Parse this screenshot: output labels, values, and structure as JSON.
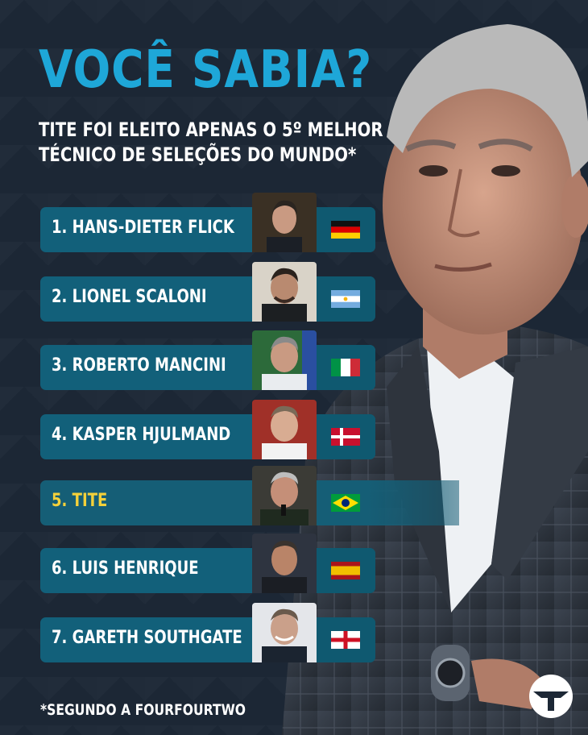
{
  "headline": "VOCÊ SABIA?",
  "subtitle_line1": "TITE FOI ELEITO APENAS O 5º MELHOR",
  "subtitle_line2": "TÉCNICO DE SELEÇÕES DO MUNDO*",
  "ranking": [
    {
      "label": "1. HANS-DIETER FLICK",
      "flag": "germany-flag-icon"
    },
    {
      "label": "2. LIONEL SCALONI",
      "flag": "argentina-flag-icon"
    },
    {
      "label": "3. ROBERTO MANCINI",
      "flag": "italy-flag-icon"
    },
    {
      "label": "4. KASPER HJULMAND",
      "flag": "denmark-flag-icon"
    },
    {
      "label": "5. TITE",
      "flag": "brazil-flag-icon"
    },
    {
      "label": "6. LUIS HENRIQUE",
      "flag": "spain-flag-icon"
    },
    {
      "label": "7. GARETH SOUTHGATE",
      "flag": "england-flag-icon"
    }
  ],
  "footnote": "*SEGUNDO A FOURFOURTWO",
  "colors": {
    "accent": "#1ea7d8",
    "highlight": "#f4d13a",
    "row": "#12607a",
    "background": "#1c2735"
  }
}
